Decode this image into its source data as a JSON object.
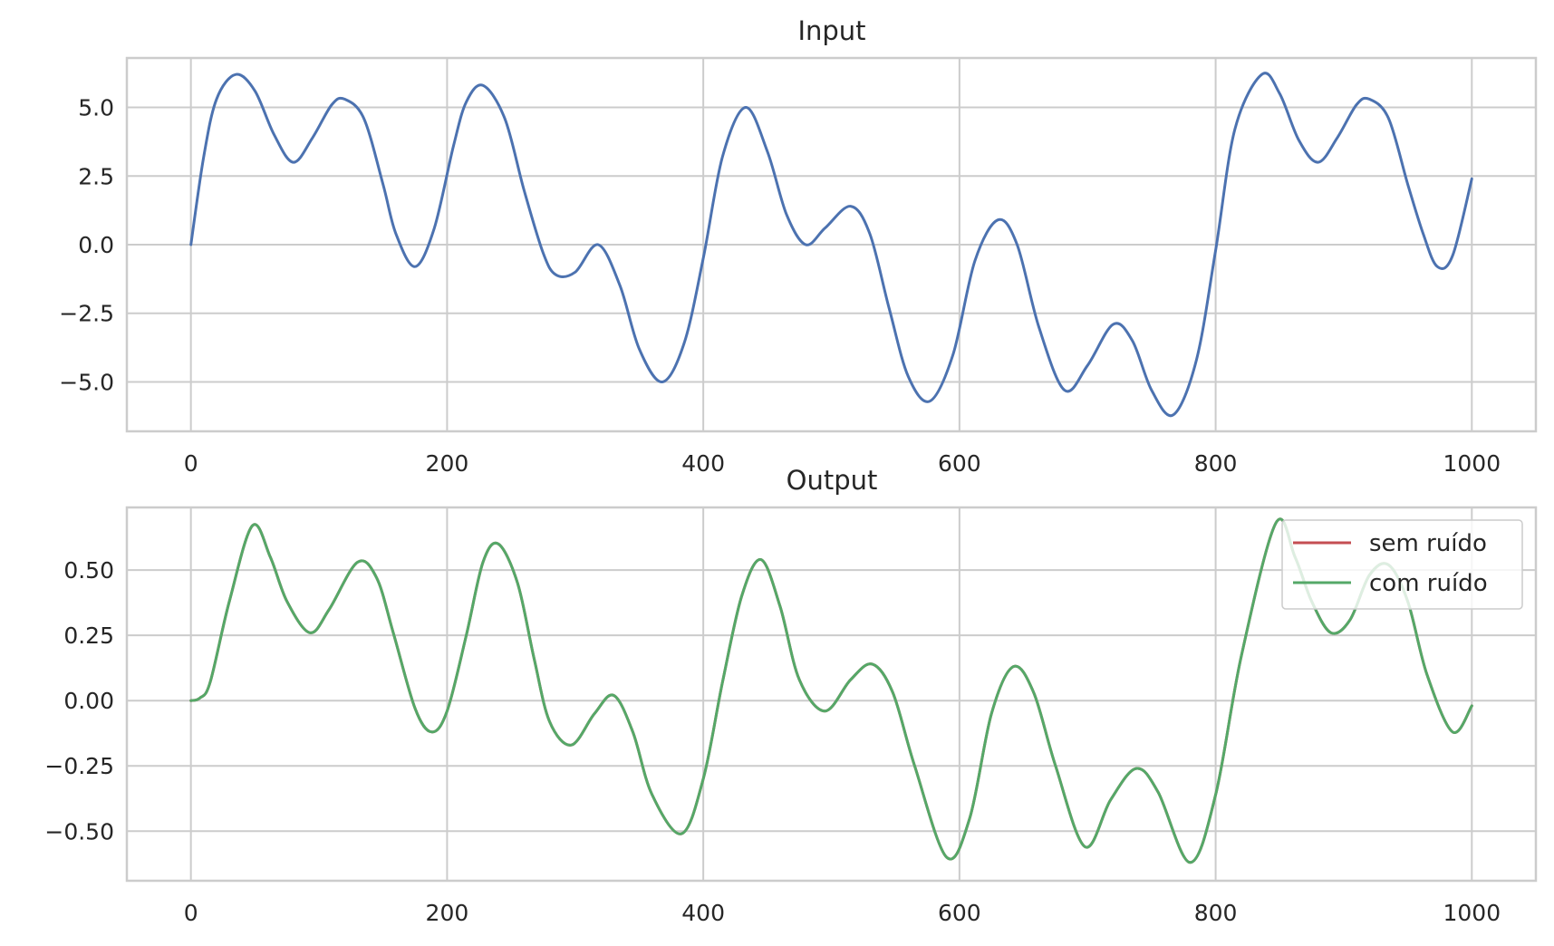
{
  "chart_data": [
    {
      "type": "line",
      "title": "Input",
      "xlabel": "",
      "ylabel": "",
      "xlim": [
        -50,
        1050
      ],
      "ylim": [
        -6.8,
        6.8
      ],
      "xticks": [
        0,
        200,
        400,
        600,
        800,
        1000
      ],
      "xtick_labels": [
        "0",
        "200",
        "400",
        "600",
        "800",
        "1000"
      ],
      "yticks": [
        5.0,
        2.5,
        0.0,
        -2.5,
        -5.0
      ],
      "ytick_labels": [
        "5.0",
        "2.5",
        "0.0",
        "−2.5",
        "−5.0"
      ],
      "grid": true,
      "legend": false,
      "series": [
        {
          "color": "#4c72b0",
          "x": [
            0,
            10,
            20,
            35,
            50,
            65,
            80,
            95,
            110,
            120,
            135,
            150,
            160,
            175,
            190,
            205,
            215,
            228,
            245,
            260,
            275,
            285,
            300,
            318,
            335,
            350,
            368,
            385,
            400,
            415,
            433,
            450,
            465,
            480,
            495,
            515,
            530,
            545,
            560,
            577,
            595,
            612,
            630,
            645,
            662,
            682,
            700,
            720,
            735,
            750,
            767,
            785,
            800,
            815,
            836,
            850,
            865,
            880,
            895,
            910,
            920,
            935,
            950,
            962,
            973,
            985,
            1000
          ],
          "y": [
            0.0,
            3.2,
            5.3,
            6.2,
            5.6,
            4.0,
            3.0,
            3.9,
            5.1,
            5.3,
            4.6,
            2.2,
            0.4,
            -0.8,
            0.6,
            3.6,
            5.2,
            5.8,
            4.6,
            2.0,
            -0.3,
            -1.1,
            -1.0,
            0.0,
            -1.5,
            -3.8,
            -5.0,
            -3.6,
            -0.5,
            3.2,
            5.0,
            3.4,
            1.1,
            0.0,
            0.6,
            1.4,
            0.4,
            -2.3,
            -4.8,
            -5.7,
            -4.0,
            -0.6,
            0.9,
            0.0,
            -3.0,
            -5.3,
            -4.4,
            -2.9,
            -3.5,
            -5.3,
            -6.2,
            -4.2,
            -0.2,
            4.2,
            6.2,
            5.5,
            3.8,
            3.0,
            3.9,
            5.1,
            5.3,
            4.6,
            2.2,
            0.4,
            -0.8,
            -0.4,
            2.4
          ]
        }
      ]
    },
    {
      "type": "line",
      "title": "Output",
      "xlabel": "",
      "ylabel": "",
      "xlim": [
        -50,
        1050
      ],
      "ylim": [
        -0.69,
        0.74
      ],
      "xticks": [
        0,
        200,
        400,
        600,
        800,
        1000
      ],
      "xtick_labels": [
        "0",
        "200",
        "400",
        "600",
        "800",
        "1000"
      ],
      "yticks": [
        0.5,
        0.25,
        0.0,
        -0.25,
        -0.5
      ],
      "ytick_labels": [
        "0.50",
        "0.25",
        "0.00",
        "−0.25",
        "−0.50"
      ],
      "grid": true,
      "legend": true,
      "legend_position": "top-right",
      "series": [
        {
          "name": "sem ruído",
          "color": "#c44e52",
          "x": [
            0,
            7,
            15,
            30,
            48,
            62,
            75,
            93,
            108,
            130,
            145,
            158,
            175,
            188,
            200,
            215,
            228,
            240,
            255,
            268,
            280,
            297,
            315,
            330,
            345,
            360,
            383,
            400,
            415,
            430,
            445,
            460,
            475,
            495,
            515,
            532,
            548,
            565,
            590,
            608,
            625,
            642,
            658,
            675,
            698,
            718,
            738,
            755,
            780,
            800,
            820,
            847,
            862,
            875,
            890,
            905,
            920,
            935,
            950,
            965,
            985,
            1000
          ],
          "y": [
            0.0,
            0.01,
            0.07,
            0.38,
            0.67,
            0.55,
            0.38,
            0.26,
            0.35,
            0.53,
            0.47,
            0.26,
            -0.03,
            -0.12,
            -0.04,
            0.25,
            0.53,
            0.6,
            0.45,
            0.16,
            -0.08,
            -0.17,
            -0.05,
            0.02,
            -0.12,
            -0.36,
            -0.51,
            -0.3,
            0.07,
            0.4,
            0.54,
            0.36,
            0.08,
            -0.04,
            0.08,
            0.14,
            0.03,
            -0.25,
            -0.6,
            -0.45,
            -0.05,
            0.13,
            0.03,
            -0.25,
            -0.56,
            -0.38,
            -0.26,
            -0.35,
            -0.62,
            -0.36,
            0.17,
            0.68,
            0.55,
            0.38,
            0.26,
            0.31,
            0.48,
            0.52,
            0.38,
            0.1,
            -0.12,
            -0.02
          ]
        },
        {
          "name": "com ruído",
          "color": "#55a868",
          "x": [
            0,
            7,
            15,
            30,
            48,
            62,
            75,
            93,
            108,
            130,
            145,
            158,
            175,
            188,
            200,
            215,
            228,
            240,
            255,
            268,
            280,
            297,
            315,
            330,
            345,
            360,
            383,
            400,
            415,
            430,
            445,
            460,
            475,
            495,
            515,
            532,
            548,
            565,
            590,
            608,
            625,
            642,
            658,
            675,
            698,
            718,
            738,
            755,
            780,
            800,
            820,
            847,
            862,
            875,
            890,
            905,
            920,
            935,
            950,
            965,
            985,
            1000
          ],
          "y": [
            0.0,
            0.01,
            0.07,
            0.38,
            0.67,
            0.55,
            0.38,
            0.26,
            0.35,
            0.53,
            0.47,
            0.26,
            -0.03,
            -0.12,
            -0.04,
            0.25,
            0.53,
            0.6,
            0.45,
            0.16,
            -0.08,
            -0.17,
            -0.05,
            0.02,
            -0.12,
            -0.36,
            -0.51,
            -0.3,
            0.07,
            0.4,
            0.54,
            0.36,
            0.08,
            -0.04,
            0.08,
            0.14,
            0.03,
            -0.25,
            -0.6,
            -0.45,
            -0.05,
            0.13,
            0.03,
            -0.25,
            -0.56,
            -0.38,
            -0.26,
            -0.35,
            -0.62,
            -0.36,
            0.17,
            0.68,
            0.55,
            0.38,
            0.26,
            0.31,
            0.48,
            0.52,
            0.38,
            0.1,
            -0.12,
            -0.02
          ]
        }
      ]
    }
  ]
}
